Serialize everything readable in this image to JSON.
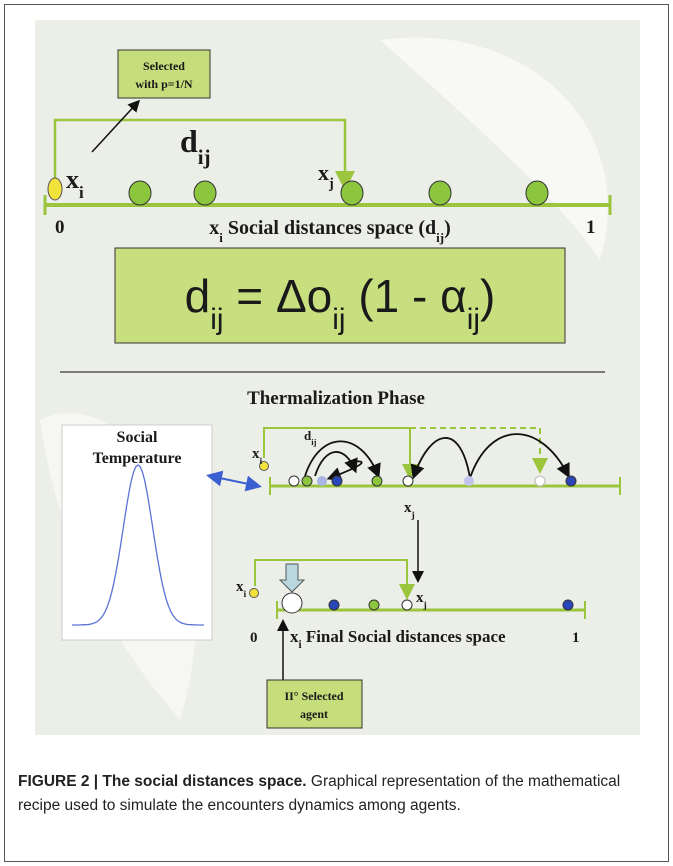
{
  "figure": {
    "top_panel": {
      "selected_box": [
        "Selected",
        "with p=1/N"
      ],
      "xi_label": [
        "x",
        {
          "sub": "i"
        }
      ],
      "dij_label": [
        "d",
        {
          "sub": "ij"
        }
      ],
      "xj_label": [
        "x",
        {
          "sub": "j"
        }
      ],
      "axis_start": "0",
      "axis_end": "1",
      "axis_title": [
        "x",
        {
          "sub": "i"
        },
        " Social distances space (d",
        {
          "sub": "ij"
        },
        ")"
      ],
      "formula": [
        "d",
        {
          "sub": "ij"
        },
        " = Δo",
        {
          "sub": "ij"
        },
        " (1 - α",
        {
          "sub": "ij"
        },
        ")"
      ]
    },
    "bottom_panel": {
      "title": "Thermalization Phase",
      "temperature_label": [
        "Social",
        "Temperature"
      ],
      "upper_xi": [
        "x",
        {
          "sub": "i"
        }
      ],
      "upper_dij": [
        "d",
        {
          "sub": "ij"
        }
      ],
      "upper_xj": [
        "x",
        {
          "sub": "j"
        }
      ],
      "lower_xi": [
        "x",
        {
          "sub": "i"
        }
      ],
      "lower_xj": [
        "x",
        {
          "sub": "j"
        }
      ],
      "axis_start": "0",
      "axis_title": [
        "x",
        {
          "sub": "i"
        },
        " Final Social distances space"
      ],
      "axis_end": "1",
      "selected_box": [
        "II° Selected",
        "agent"
      ]
    }
  },
  "caption": {
    "label": "FIGURE 2 | The social distances space.",
    "text": " Graphical representation of the mathematical recipe used to simulate the encounters dynamics among agents."
  }
}
